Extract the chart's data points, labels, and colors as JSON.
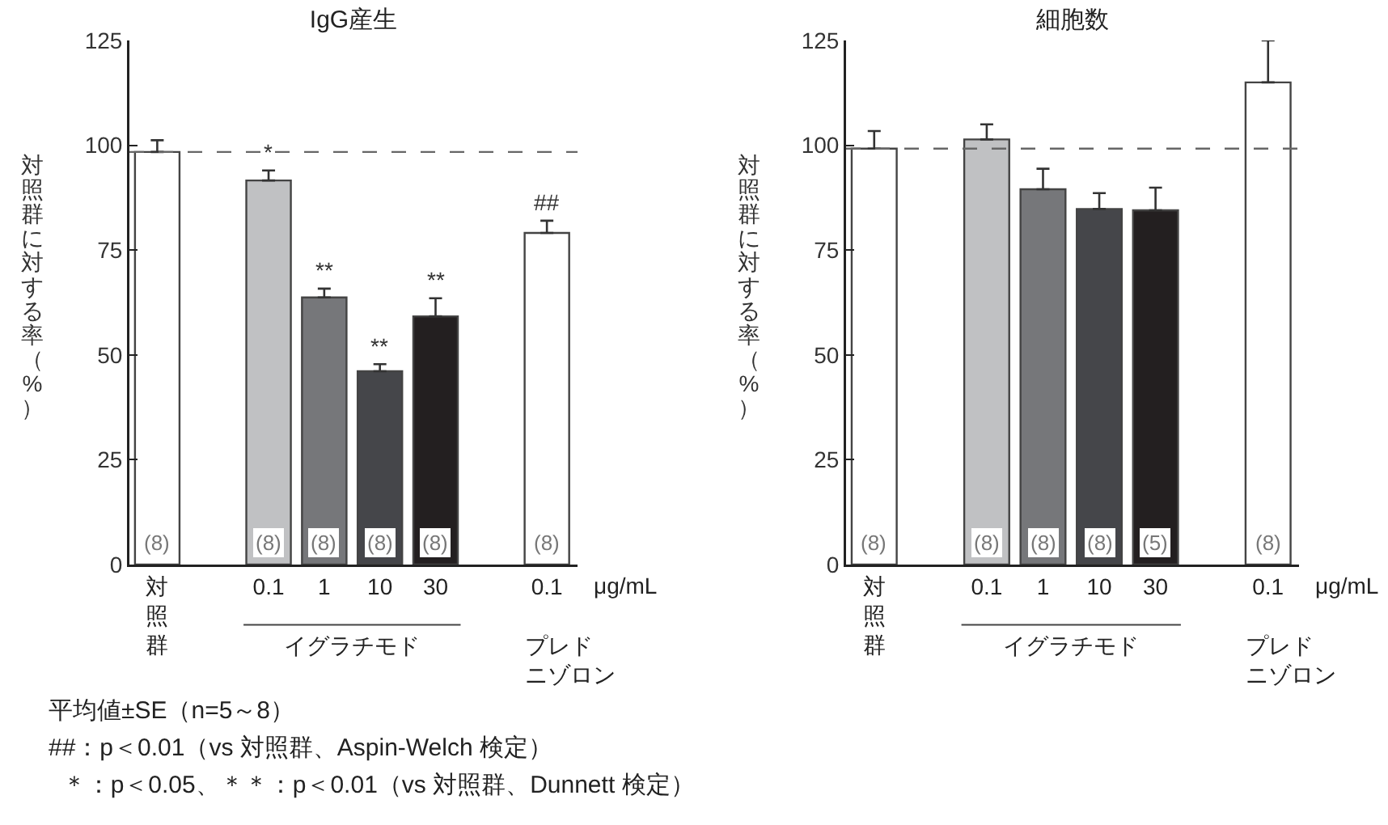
{
  "chart_data": [
    {
      "type": "bar",
      "title": "IgG産生",
      "ylabel": "対照群に対する率（%）",
      "categories": [
        "対照群",
        null,
        "0.1",
        "1",
        "10",
        "30",
        null,
        "0.1"
      ],
      "values": [
        98.4,
        null,
        91.6,
        63.7,
        46.1,
        59.2,
        null,
        79.1
      ],
      "colors": [
        "#ffffff",
        null,
        "#c0c1c3",
        "#76777a",
        "#45464a",
        "#231f20",
        null,
        "#ffffff"
      ],
      "errors": [
        [
          98.4,
          101.2
        ],
        null,
        [
          91.6,
          94.0
        ],
        [
          63.7,
          65.8
        ],
        [
          46.1,
          47.8
        ],
        [
          59.2,
          63.5
        ],
        null,
        [
          79.1,
          82.0
        ]
      ],
      "ylim": [
        0,
        125
      ],
      "yticks": [
        0,
        25,
        50,
        75,
        100,
        125
      ],
      "ref_lines": [
        {
          "axis": "y",
          "value": 98.4,
          "line_style": "dashed"
        }
      ],
      "annotations": [
        "(8)",
        "(8)",
        "(8)",
        "(8)",
        "(8)",
        "(8)",
        {
          "text": "*",
          "x": "0.1",
          "y": 94.0
        },
        {
          "text": "**",
          "x": "1",
          "y": 65.8
        },
        {
          "text": "**",
          "x": "10",
          "y": 47.8
        },
        {
          "text": "**",
          "x": "30",
          "y": 63.5
        },
        "μg/mL",
        "イグラチモド",
        "プレドニゾロン",
        "##"
      ]
    },
    {
      "type": "bar",
      "title": "細胞数",
      "ylabel": "対照群に対する率（%）",
      "categories": [
        "対照群",
        null,
        "0.1",
        "1",
        "10",
        "30",
        null,
        "0.1"
      ],
      "values": [
        99.2,
        null,
        101.4,
        89.5,
        84.8,
        84.5,
        null,
        115.0
      ],
      "colors": [
        "#ffffff",
        null,
        "#c0c1c3",
        "#76777a",
        "#45464a",
        "#231f20",
        null,
        "#ffffff"
      ],
      "errors": [
        [
          99.2,
          103.4
        ],
        null,
        [
          101.4,
          105.0
        ],
        [
          89.5,
          94.4
        ],
        [
          84.8,
          88.6
        ],
        [
          84.5,
          89.9
        ],
        null,
        [
          115.0,
          125.0
        ]
      ],
      "ylim": [
        0,
        125
      ],
      "yticks": [
        0,
        25,
        50,
        75,
        100,
        125
      ],
      "ref_lines": [
        {
          "axis": "y",
          "value": 99.2,
          "line_style": "dashed"
        }
      ],
      "annotations": [
        "(8)",
        "(8)",
        "(8)",
        "(8)",
        "(5)",
        "(8)",
        "μg/mL",
        "イグラチモド",
        "プレドニゾロン"
      ]
    },
    {
      "type": "other",
      "annotations": [
        "平均値±SE（n=5～8）",
        "##：p＜0.01（vs 対照群、Aspin-Welch 検定）",
        "  ＊：p＜0.05、＊＊：p＜0.01（vs 対照群、Dunnett 検定）"
      ]
    }
  ]
}
